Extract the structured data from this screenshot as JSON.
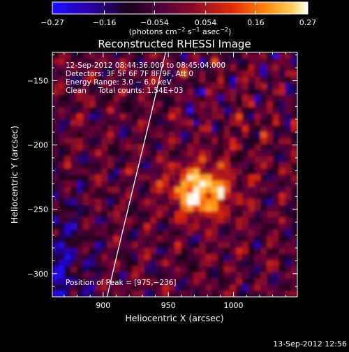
{
  "chart_data": {
    "type": "heatmap",
    "title": "Reconstructed RHESSI Image",
    "xlabel": "Heliocentric X (arcsec)",
    "ylabel": "Heliocentric Y (arcsec)",
    "xlim": [
      861,
      1049
    ],
    "ylim": [
      -318,
      -128
    ],
    "x_ticks": [
      {
        "value": 900,
        "label": "900"
      },
      {
        "value": 950,
        "label": "950"
      },
      {
        "value": 1000,
        "label": "1000"
      }
    ],
    "y_ticks": [
      {
        "value": -150,
        "label": "−150"
      },
      {
        "value": -200,
        "label": "−200"
      },
      {
        "value": -250,
        "label": "−250"
      },
      {
        "value": -300,
        "label": "−300"
      }
    ],
    "colorbar": {
      "min": -0.27,
      "max": 0.27,
      "ticks": [
        {
          "value": -0.27,
          "label": "−0.27"
        },
        {
          "value": -0.16,
          "label": "−0.16"
        },
        {
          "value": -0.054,
          "label": "−0.054"
        },
        {
          "value": 0.054,
          "label": "0.054"
        },
        {
          "value": 0.16,
          "label": "0.16"
        },
        {
          "value": 0.27,
          "label": "0.27"
        }
      ],
      "label_main": "(photons cm",
      "label_exp1": "−2",
      "label_mid1": " s",
      "label_exp2": "−1",
      "label_mid2": " asec",
      "label_exp3": "−2",
      "label_end": ")"
    },
    "annotations": {
      "time_range": "12-Sep-2012 08:44:36.000 to 08:45:04.000",
      "detectors": "Detectors: 3F 5F 6F 7F 8F 9F, Att 0",
      "energy": "Energy Range: 3.0 − 6.0 keV",
      "clean": "Clean     Total counts: 1.54E+03",
      "peak": "Position of Peak = [975,−236]"
    },
    "peak": {
      "x": 975,
      "y": -236
    },
    "limb_curve": [
      {
        "x": 903,
        "y": -318
      },
      {
        "x": 913,
        "y": -275
      },
      {
        "x": 925,
        "y": -225
      },
      {
        "x": 937,
        "y": -175
      },
      {
        "x": 945,
        "y": -140
      },
      {
        "x": 948,
        "y": -128
      }
    ],
    "timestamp": "13-Sep-2012 12:56"
  }
}
